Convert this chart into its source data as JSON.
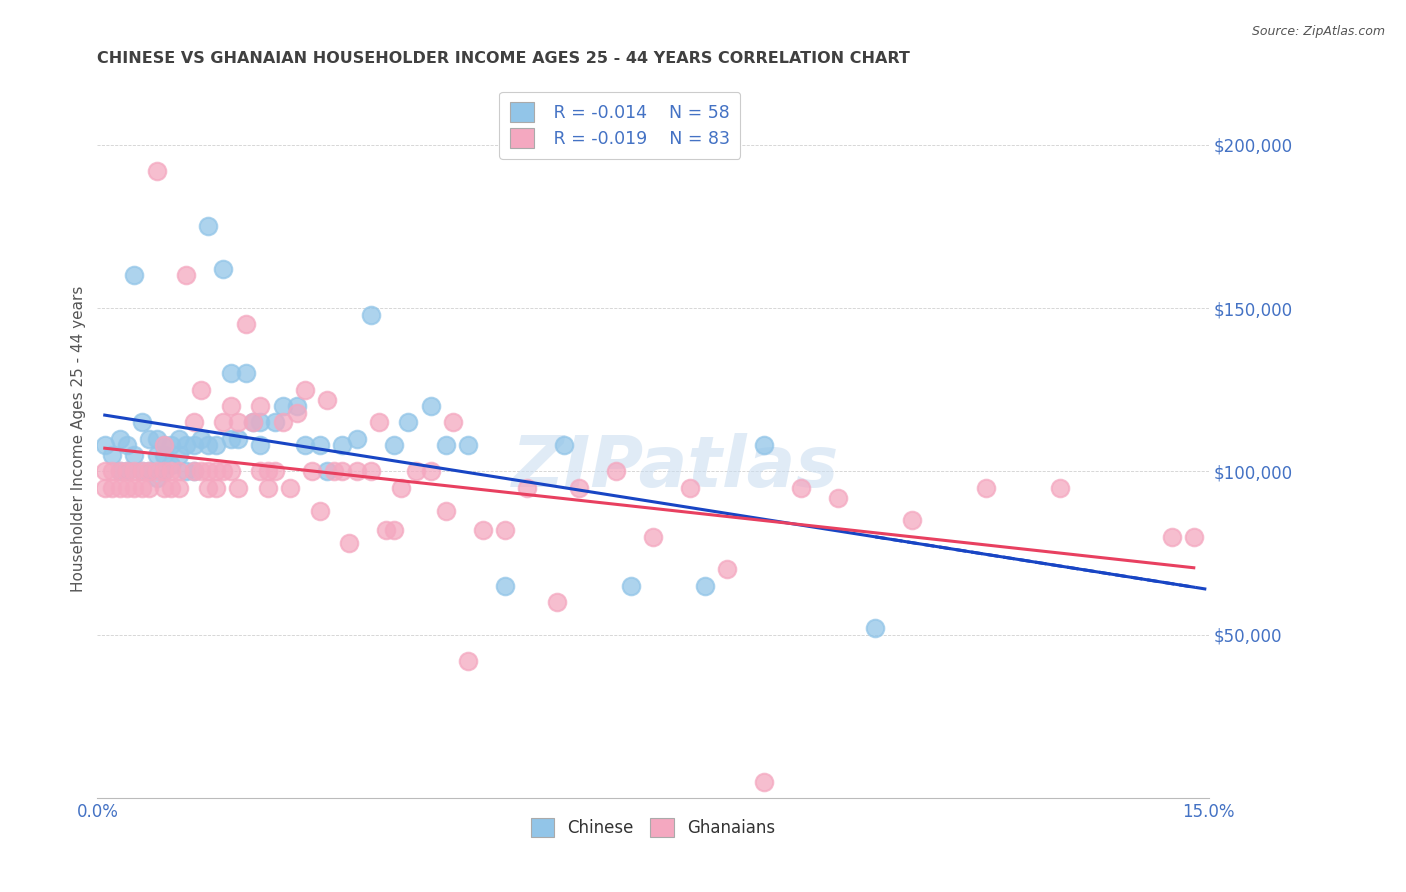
{
  "title": "CHINESE VS GHANAIAN HOUSEHOLDER INCOME AGES 25 - 44 YEARS CORRELATION CHART",
  "source": "Source: ZipAtlas.com",
  "ylabel": "Householder Income Ages 25 - 44 years",
  "xlim": [
    0.0,
    0.15
  ],
  "ylim": [
    0,
    220000
  ],
  "yticks": [
    50000,
    100000,
    150000,
    200000
  ],
  "ytick_labels": [
    "$50,000",
    "$100,000",
    "$150,000",
    "$200,000"
  ],
  "xticks": [
    0.0,
    0.025,
    0.05,
    0.075,
    0.1,
    0.125,
    0.15
  ],
  "xtick_labels": [
    "0.0%",
    "",
    "",
    "",
    "",
    "",
    "15.0%"
  ],
  "chinese_color": "#92C5E8",
  "ghanaian_color": "#F4A8C0",
  "chinese_line_color": "#1845C4",
  "ghanaian_line_color": "#E84060",
  "axis_color": "#4472C4",
  "title_color": "#404040",
  "watermark": "ZIPatlas",
  "chinese_x": [
    0.001,
    0.002,
    0.003,
    0.003,
    0.004,
    0.004,
    0.005,
    0.005,
    0.006,
    0.006,
    0.007,
    0.007,
    0.008,
    0.008,
    0.008,
    0.009,
    0.009,
    0.009,
    0.01,
    0.01,
    0.011,
    0.011,
    0.012,
    0.012,
    0.013,
    0.013,
    0.014,
    0.015,
    0.015,
    0.016,
    0.017,
    0.018,
    0.018,
    0.019,
    0.02,
    0.021,
    0.022,
    0.022,
    0.024,
    0.025,
    0.027,
    0.028,
    0.03,
    0.031,
    0.033,
    0.035,
    0.037,
    0.04,
    0.042,
    0.045,
    0.047,
    0.05,
    0.055,
    0.063,
    0.072,
    0.082,
    0.09,
    0.105
  ],
  "chinese_y": [
    108000,
    105000,
    110000,
    100000,
    108000,
    100000,
    160000,
    105000,
    115000,
    100000,
    110000,
    100000,
    110000,
    105000,
    98000,
    108000,
    105000,
    100000,
    108000,
    102000,
    110000,
    105000,
    108000,
    100000,
    108000,
    100000,
    110000,
    175000,
    108000,
    108000,
    162000,
    110000,
    130000,
    110000,
    130000,
    115000,
    115000,
    108000,
    115000,
    120000,
    120000,
    108000,
    108000,
    100000,
    108000,
    110000,
    148000,
    108000,
    115000,
    120000,
    108000,
    108000,
    65000,
    108000,
    65000,
    65000,
    108000,
    52000
  ],
  "ghanaian_x": [
    0.001,
    0.001,
    0.002,
    0.002,
    0.003,
    0.003,
    0.004,
    0.004,
    0.005,
    0.005,
    0.006,
    0.006,
    0.007,
    0.007,
    0.008,
    0.008,
    0.009,
    0.009,
    0.009,
    0.01,
    0.01,
    0.011,
    0.011,
    0.012,
    0.013,
    0.013,
    0.014,
    0.014,
    0.015,
    0.015,
    0.016,
    0.016,
    0.017,
    0.017,
    0.018,
    0.018,
    0.019,
    0.019,
    0.02,
    0.021,
    0.022,
    0.022,
    0.023,
    0.023,
    0.024,
    0.025,
    0.026,
    0.027,
    0.028,
    0.029,
    0.03,
    0.031,
    0.032,
    0.033,
    0.034,
    0.035,
    0.037,
    0.038,
    0.039,
    0.04,
    0.041,
    0.043,
    0.045,
    0.047,
    0.048,
    0.05,
    0.052,
    0.055,
    0.058,
    0.062,
    0.065,
    0.07,
    0.075,
    0.08,
    0.085,
    0.09,
    0.095,
    0.1,
    0.11,
    0.12,
    0.13,
    0.145,
    0.148
  ],
  "ghanaian_y": [
    100000,
    95000,
    100000,
    95000,
    100000,
    95000,
    100000,
    95000,
    100000,
    95000,
    100000,
    95000,
    100000,
    95000,
    192000,
    100000,
    100000,
    95000,
    108000,
    100000,
    95000,
    100000,
    95000,
    160000,
    115000,
    100000,
    125000,
    100000,
    100000,
    95000,
    100000,
    95000,
    115000,
    100000,
    120000,
    100000,
    115000,
    95000,
    145000,
    115000,
    120000,
    100000,
    100000,
    95000,
    100000,
    115000,
    95000,
    118000,
    125000,
    100000,
    88000,
    122000,
    100000,
    100000,
    78000,
    100000,
    100000,
    115000,
    82000,
    82000,
    95000,
    100000,
    100000,
    88000,
    115000,
    42000,
    82000,
    82000,
    95000,
    60000,
    95000,
    100000,
    80000,
    95000,
    70000,
    5000,
    95000,
    92000,
    85000,
    95000,
    95000,
    80000,
    80000
  ]
}
